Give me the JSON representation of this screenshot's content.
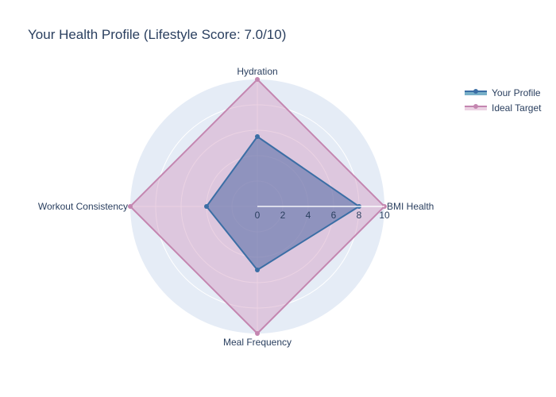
{
  "colors": {
    "polar_bg": "#e5ecf6",
    "grid": "#ffffff",
    "text": "#2a3f5f",
    "series_profile_line": "#3b6ea5",
    "series_profile_fill": "#5b6fa8",
    "series_profile_marker": "#3b6ea5",
    "legend_profile_swatch": "#3f8fb1",
    "series_target_line": "#c486b0",
    "series_target_fill": "#d39cc0"
  },
  "chart_data": {
    "type": "radar",
    "title": "Your Health Profile (Lifestyle Score: 7.0/10)",
    "categories": [
      "BMI Health",
      "Hydration",
      "Workout Consistency",
      "Meal Frequency"
    ],
    "radial_range": [
      0,
      10
    ],
    "radial_ticks": [
      "0",
      "2",
      "4",
      "6",
      "8",
      "10"
    ],
    "grid": true,
    "legend_position": "top-right",
    "series": [
      {
        "name": "Your Profile",
        "values": [
          8,
          5.5,
          4,
          5
        ],
        "color": "#3b6ea5",
        "fill": "toself"
      },
      {
        "name": "Ideal Target",
        "values": [
          10,
          10,
          10,
          10
        ],
        "color": "#c486b0",
        "fill": "toself"
      }
    ]
  }
}
